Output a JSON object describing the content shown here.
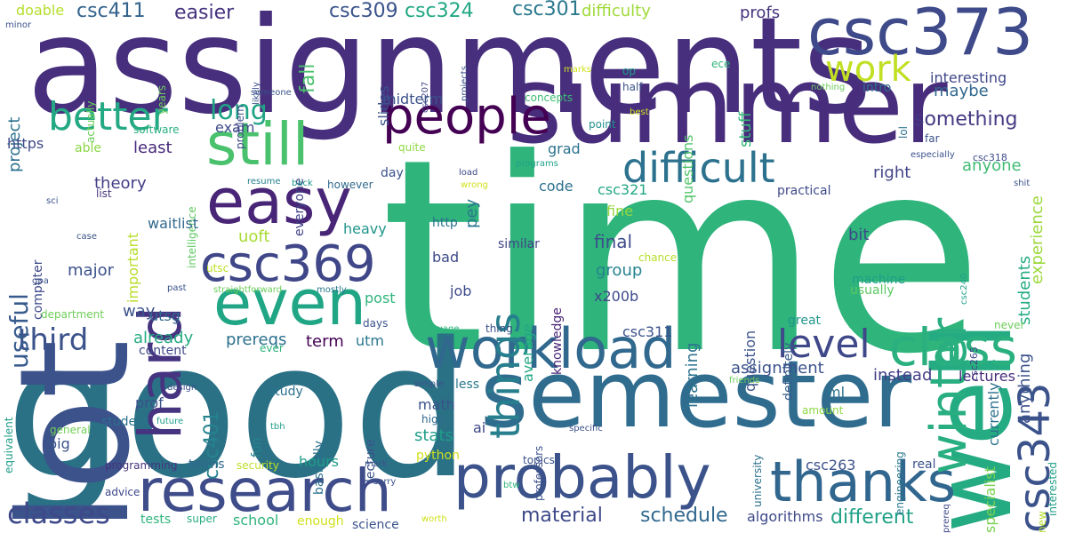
{
  "word_cloud": {
    "words": [
      {
        "text": "time",
        "color": "#2fb47c"
      },
      {
        "text": "good",
        "color": "#2a7186"
      },
      {
        "text": "assignments",
        "color": "#472f7d"
      },
      {
        "text": "semester",
        "color": "#2f6c8e"
      },
      {
        "text": "lot",
        "color": "#3b528b"
      },
      {
        "text": "summer",
        "color": "#472d7b"
      },
      {
        "text": "well",
        "color": "#25ab82"
      },
      {
        "text": "csc373",
        "color": "#3e4a89"
      },
      {
        "text": "probably",
        "color": "#3b528b"
      },
      {
        "text": "research",
        "color": "#3e4c8a"
      },
      {
        "text": "workload",
        "color": "#31688e"
      },
      {
        "text": "thanks",
        "color": "#31668e"
      },
      {
        "text": "people",
        "color": "#440154"
      },
      {
        "text": "easy",
        "color": "#482576"
      },
      {
        "text": "even",
        "color": "#21a685"
      },
      {
        "text": "csc369",
        "color": "#3f4788"
      },
      {
        "text": "still",
        "color": "#4ac16d"
      },
      {
        "text": "hard",
        "color": "#463480"
      },
      {
        "text": "class",
        "color": "#2ab07f"
      },
      {
        "text": "winter",
        "color": "#28ae80"
      },
      {
        "text": "csc343",
        "color": "#3b528b"
      },
      {
        "text": "difficult",
        "color": "#2c728e"
      },
      {
        "text": "better",
        "color": "#23a983"
      },
      {
        "text": "things",
        "color": "#277f8e"
      },
      {
        "text": "level",
        "color": "#3f4889"
      },
      {
        "text": "work",
        "color": "#c2df23"
      },
      {
        "text": "classes",
        "color": "#3e4989"
      },
      {
        "text": "third",
        "color": "#3b528b"
      },
      {
        "text": "long",
        "color": "#20a486"
      },
      {
        "text": "useful",
        "color": "#375b8d"
      },
      {
        "text": "material",
        "color": "#3e4989"
      },
      {
        "text": "schedule",
        "color": "#31688e"
      },
      {
        "text": "different",
        "color": "#1fa187"
      },
      {
        "text": "algorithms",
        "color": "#3e4989"
      },
      {
        "text": "csc411",
        "color": "#33638d"
      },
      {
        "text": "csc309",
        "color": "#3a548c"
      },
      {
        "text": "csc324",
        "color": "#22a884"
      },
      {
        "text": "csc301",
        "color": "#2a788e"
      },
      {
        "text": "csc321",
        "color": "#22a884"
      },
      {
        "text": "csc311",
        "color": "#3b528b"
      },
      {
        "text": "csc263",
        "color": "#3b528b"
      },
      {
        "text": "csc401",
        "color": "#25838e"
      },
      {
        "text": "csc318",
        "color": "#3e4a89"
      },
      {
        "text": "csc265",
        "color": "#3f4788"
      },
      {
        "text": "csc240",
        "color": "#1fa088"
      },
      {
        "text": "csc207",
        "color": "#3f4889"
      },
      {
        "text": "easier",
        "color": "#46327e"
      },
      {
        "text": "doable",
        "color": "#b5de2b"
      },
      {
        "text": "difficulty",
        "color": "#a0da39"
      },
      {
        "text": "profs",
        "color": "#46327e"
      },
      {
        "text": "interesting",
        "color": "#3f4889"
      },
      {
        "text": "something",
        "color": "#443983"
      },
      {
        "text": "experience",
        "color": "#9bd93c"
      },
      {
        "text": "maybe",
        "color": "#31688e"
      },
      {
        "text": "anyone",
        "color": "#3fbc73"
      },
      {
        "text": "right",
        "color": "#414487"
      },
      {
        "text": "students",
        "color": "#25ab82"
      },
      {
        "text": "anything",
        "color": "#3b528b"
      },
      {
        "text": "specialist",
        "color": "#7ad151"
      },
      {
        "text": "currently",
        "color": "#2c718e"
      },
      {
        "text": "instead",
        "color": "#433e85"
      },
      {
        "text": "lectures",
        "color": "#472d7b"
      },
      {
        "text": "fall",
        "color": "#4ac16d"
      },
      {
        "text": "stuff",
        "color": "#35b779"
      },
      {
        "text": "questions",
        "color": "#52c569"
      },
      {
        "text": "midterm",
        "color": "#3b528b"
      },
      {
        "text": "exam",
        "color": "#3e4989"
      },
      {
        "text": "least",
        "color": "#472a7a"
      },
      {
        "text": "theory",
        "color": "#433e85"
      },
      {
        "text": "project",
        "color": "#2c718e"
      },
      {
        "text": "projects",
        "color": "#3b528b"
      },
      {
        "text": "https",
        "color": "#3e4989"
      },
      {
        "text": "able",
        "color": "#8bd646"
      },
      {
        "text": "computer",
        "color": "#3e4a89"
      },
      {
        "text": "major",
        "color": "#3b528b"
      },
      {
        "text": "uoft",
        "color": "#a8db34"
      },
      {
        "text": "heavy",
        "color": "#1f958b"
      },
      {
        "text": "bit",
        "color": "#3e4989"
      },
      {
        "text": "final",
        "color": "#3e4c8a"
      },
      {
        "text": "group",
        "color": "#26828e"
      },
      {
        "text": "fine",
        "color": "#95d840"
      },
      {
        "text": "code",
        "color": "#2c718e"
      },
      {
        "text": "grad",
        "color": "#2c728e"
      },
      {
        "text": "pey",
        "color": "#2a788e"
      },
      {
        "text": "average",
        "color": "#22a884"
      },
      {
        "text": "knowledge",
        "color": "#482475"
      },
      {
        "text": "learning",
        "color": "#2c728e"
      },
      {
        "text": "question",
        "color": "#3b528b"
      },
      {
        "text": "definitely",
        "color": "#375b8d"
      },
      {
        "text": "machine",
        "color": "#1f9e89"
      },
      {
        "text": "usually",
        "color": "#5ec962"
      },
      {
        "text": "great",
        "color": "#1f968b"
      },
      {
        "text": "practical",
        "color": "#3e4989"
      },
      {
        "text": "job",
        "color": "#3e4c8a"
      },
      {
        "text": "x200b",
        "color": "#3e4989"
      },
      {
        "text": "bad",
        "color": "#3e4989"
      },
      {
        "text": "http",
        "color": "#2c718e"
      },
      {
        "text": "day",
        "color": "#3b528b"
      },
      {
        "text": "quite",
        "color": "#8fd744"
      },
      {
        "text": "point",
        "color": "#21918c"
      },
      {
        "text": "concepts",
        "color": "#3fbc73"
      },
      {
        "text": "slides",
        "color": "#3b528b"
      },
      {
        "text": "problem",
        "color": "#3e4989"
      },
      {
        "text": "everyone",
        "color": "#414487"
      },
      {
        "text": "software",
        "color": "#29af7f"
      },
      {
        "text": "intelligence",
        "color": "#5ec962"
      },
      {
        "text": "list",
        "color": "#46337e"
      },
      {
        "text": "however",
        "color": "#31688e"
      },
      {
        "text": "back",
        "color": "#1f968b"
      },
      {
        "text": "resume",
        "color": "#27808e"
      },
      {
        "text": "wrong",
        "color": "#d0e11c"
      },
      {
        "text": "load",
        "color": "#3e4989"
      },
      {
        "text": "programs",
        "color": "#1fa188"
      },
      {
        "text": "similar",
        "color": "#414487"
      },
      {
        "text": "chance",
        "color": "#b5de2b"
      },
      {
        "text": "important",
        "color": "#b8de29"
      },
      {
        "text": "waitlist",
        "color": "#31688e"
      },
      {
        "text": "utsc",
        "color": "#bddf26"
      },
      {
        "text": "case",
        "color": "#3b528b"
      },
      {
        "text": "gpa",
        "color": "#3b528b"
      },
      {
        "text": "past",
        "color": "#3b528b"
      },
      {
        "text": "straightforward",
        "color": "#6ccd5a"
      },
      {
        "text": "mostly",
        "color": "#29798e"
      },
      {
        "text": "post",
        "color": "#2fb47c"
      },
      {
        "text": "department",
        "color": "#6ece58"
      },
      {
        "text": "way",
        "color": "#3b528b"
      },
      {
        "text": "utsg",
        "color": "#31688e"
      },
      {
        "text": "days",
        "color": "#3b528b"
      },
      {
        "text": "already",
        "color": "#25ab82"
      },
      {
        "text": "prereqs",
        "color": "#2c718e"
      },
      {
        "text": "term",
        "color": "#440154"
      },
      {
        "text": "utm",
        "color": "#2a788e"
      },
      {
        "text": "language",
        "color": "#2fb47c"
      },
      {
        "text": "thing",
        "color": "#3b528b"
      },
      {
        "text": "ever",
        "color": "#2fb47c"
      },
      {
        "text": "content",
        "color": "#3e4989"
      },
      {
        "text": "equivalent",
        "color": "#1f9e89"
      },
      {
        "text": "assignment",
        "color": "#3b528b"
      },
      {
        "text": "design",
        "color": "#3b528b"
      },
      {
        "text": "study",
        "color": "#2c718e"
      },
      {
        "text": "basically",
        "color": "#2c718e"
      },
      {
        "text": "lecture",
        "color": "#3b528b"
      },
      {
        "text": "simple",
        "color": "#3b528b"
      },
      {
        "text": "less",
        "color": "#2a788e"
      },
      {
        "text": "prof",
        "color": "#3b528b"
      },
      {
        "text": "fun",
        "color": "#25838e"
      },
      {
        "text": "future",
        "color": "#1f9e89"
      },
      {
        "text": "tbh",
        "color": "#1f9e89"
      },
      {
        "text": "general",
        "color": "#73d056"
      },
      {
        "text": "student",
        "color": "#2c718e"
      },
      {
        "text": "math",
        "color": "#3b528b"
      },
      {
        "text": "high",
        "color": "#31688e"
      },
      {
        "text": "stats",
        "color": "#1f9e89"
      },
      {
        "text": "ai",
        "color": "#3e4989"
      },
      {
        "text": "professors",
        "color": "#3b528b"
      },
      {
        "text": "specific",
        "color": "#3b528b"
      },
      {
        "text": "university",
        "color": "#2c718e"
      },
      {
        "text": "ml",
        "color": "#2c718e"
      },
      {
        "text": "amount",
        "color": "#8fd744"
      },
      {
        "text": "friends",
        "color": "#6ccd5a"
      },
      {
        "text": "engineering",
        "color": "#2a788e"
      },
      {
        "text": "interested",
        "color": "#1f9e89"
      },
      {
        "text": "terms",
        "color": "#31688e"
      },
      {
        "text": "hours",
        "color": "#1f9e89"
      },
      {
        "text": "python",
        "color": "#d0e11c"
      },
      {
        "text": "topics",
        "color": "#3b528b"
      },
      {
        "text": "programming",
        "color": "#46337e"
      },
      {
        "text": "security",
        "color": "#bddf26"
      },
      {
        "text": "mark",
        "color": "#3b528b"
      },
      {
        "text": "real",
        "color": "#3b528b"
      },
      {
        "text": "new",
        "color": "#b5de2b"
      },
      {
        "text": "big",
        "color": "#3b528b"
      },
      {
        "text": "advice",
        "color": "#3e4989"
      },
      {
        "text": "tests",
        "color": "#2fb47c"
      },
      {
        "text": "super",
        "color": "#25ab82"
      },
      {
        "text": "school",
        "color": "#2fb47c"
      },
      {
        "text": "enough",
        "color": "#d0e11c"
      },
      {
        "text": "science",
        "color": "#3b528b"
      },
      {
        "text": "worth",
        "color": "#d0e11c"
      },
      {
        "text": "prereq",
        "color": "#3e4989"
      },
      {
        "text": "sorry",
        "color": "#3b528b"
      },
      {
        "text": "btw",
        "color": "#2fb47c"
      },
      {
        "text": "years",
        "color": "#6ccd5a"
      },
      {
        "text": "actually",
        "color": "#6ccd5a"
      },
      {
        "text": "likely",
        "color": "#3b528b"
      },
      {
        "text": "someone",
        "color": "#3b528b"
      },
      {
        "text": "minor",
        "color": "#3b528b"
      },
      {
        "text": "sci",
        "color": "#3b528b"
      },
      {
        "text": "marks",
        "color": "#d0e11c"
      },
      {
        "text": "op",
        "color": "#1f9e89"
      },
      {
        "text": "half",
        "color": "#3b528b"
      },
      {
        "text": "ece",
        "color": "#2fb47c"
      },
      {
        "text": "nothing",
        "color": "#6ccd5a"
      },
      {
        "text": "intro",
        "color": "#2c718e"
      },
      {
        "text": "best",
        "color": "#d0e11c"
      },
      {
        "text": "lol",
        "color": "#2c718e"
      },
      {
        "text": "far",
        "color": "#3b528b"
      },
      {
        "text": "especially",
        "color": "#3b528b"
      },
      {
        "text": "shit",
        "color": "#3b528b"
      },
      {
        "text": "never",
        "color": "#6ccd5a"
      }
    ]
  }
}
